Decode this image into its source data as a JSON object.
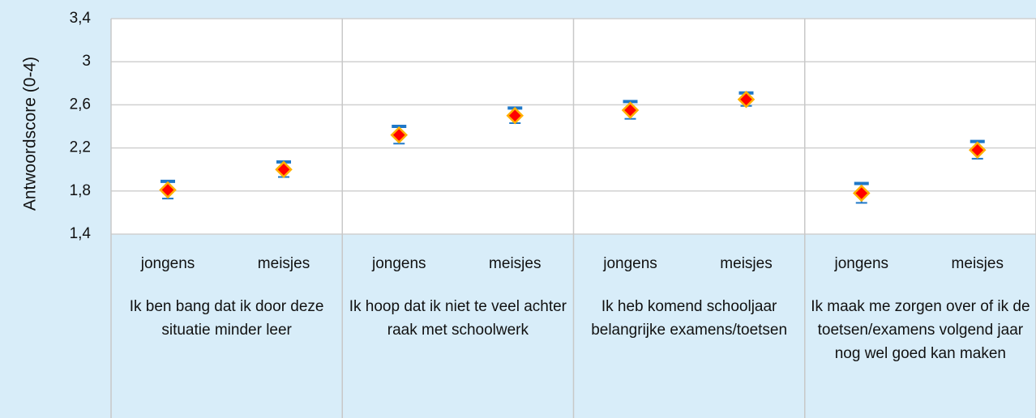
{
  "chart_data": {
    "type": "errorpoint",
    "ylabel": "Antwoordscore (0-4)",
    "groups": [
      "Ik ben bang dat ik door deze situatie minder leer",
      "Ik hoop dat ik niet te veel achter raak met schoolwerk",
      "Ik heb komend schooljaar belangrijke examens/toetsen",
      "Ik maak me zorgen over of ik de toetsen/examens volgend jaar nog wel goed kan maken"
    ],
    "categories": [
      "jongens",
      "meisjes",
      "jongens",
      "meisjes",
      "jongens",
      "meisjes",
      "jongens",
      "meisjes"
    ],
    "values": [
      1.81,
      2.0,
      2.32,
      2.5,
      2.55,
      2.65,
      1.78,
      2.18
    ],
    "errors": [
      0.08,
      0.07,
      0.08,
      0.07,
      0.08,
      0.06,
      0.09,
      0.08
    ],
    "color": "#ff0000",
    "edge_color": "#ffb000",
    "error_color": "#1f78c8",
    "ylim": [
      1.4,
      3.4
    ],
    "yticks": [
      {
        "value": 1.4,
        "label": "1,4"
      },
      {
        "value": 1.8,
        "label": "1,8"
      },
      {
        "value": 2.2,
        "label": "2,2"
      },
      {
        "value": 2.6,
        "label": "2,6"
      },
      3,
      {
        "value": 3.4,
        "label": "3,4"
      }
    ],
    "grid": true
  }
}
